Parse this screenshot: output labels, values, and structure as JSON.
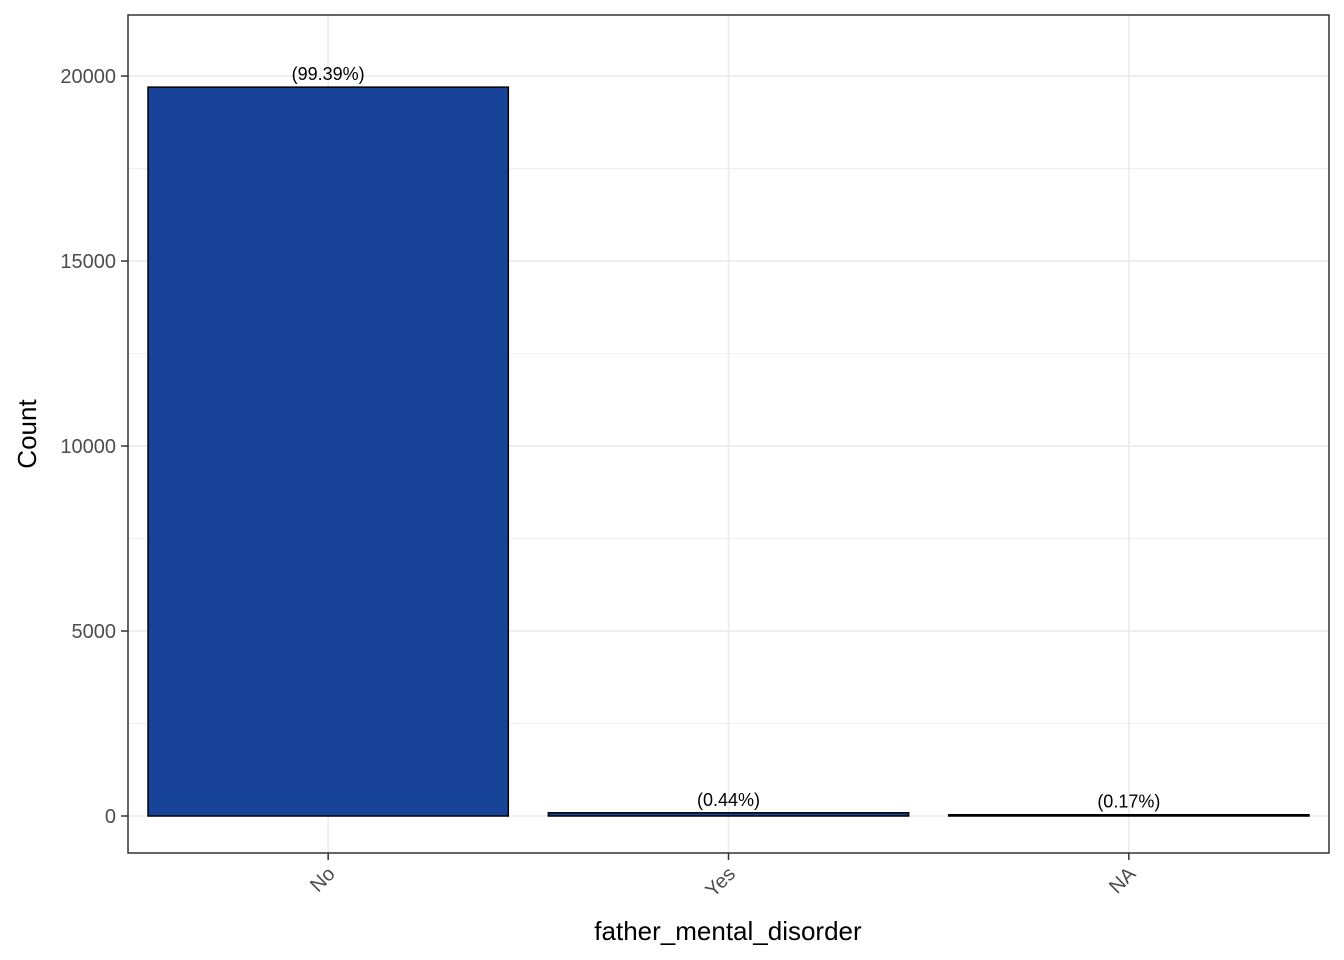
{
  "chart_data": {
    "type": "bar",
    "categories": [
      "No",
      "Yes",
      "NA"
    ],
    "values": [
      19700,
      87,
      34
    ],
    "data_labels": [
      "(99.39%)",
      "(0.44%)",
      "(0.17%)"
    ],
    "xlabel": "father_mental_disorder",
    "ylabel": "Count",
    "ylim": [
      -1000,
      21650
    ],
    "yticks": [
      0,
      5000,
      10000,
      15000,
      20000
    ],
    "ytick_labels": [
      "0",
      "5000",
      "10000",
      "15000",
      "20000"
    ],
    "grid": true,
    "legend": "none",
    "colors": {
      "bar_fill": "#174499",
      "bar_stroke": "#000000",
      "grid": "#ebebeb",
      "panel_border": "#333333"
    }
  }
}
